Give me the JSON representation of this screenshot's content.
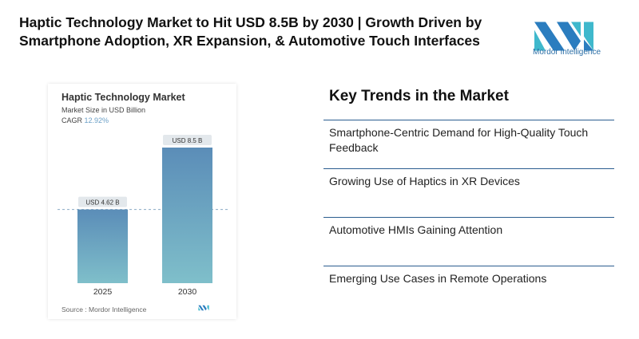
{
  "header": {
    "title": "Haptic Technology Market to Hit USD 8.5B by 2030 | Growth Driven by Smartphone Adoption, XR Expansion, & Automotive Touch Interfaces",
    "logo_text": "Mordor Intelligence"
  },
  "chart_data": {
    "type": "bar",
    "title": "Haptic Technology Market",
    "subtitle": "Market Size in USD Billion",
    "cagr_label": "CAGR",
    "cagr_value": "12.92%",
    "categories": [
      "2025",
      "2030"
    ],
    "values": [
      4.62,
      8.5
    ],
    "data_labels": [
      "USD 4.62 B",
      "USD 8.5 B"
    ],
    "colors": {
      "bar_top": "#5b8db8",
      "bar_bottom": "#7fbfca",
      "dashed_line": "#8aa9c4"
    },
    "ylim": [
      0,
      8.5
    ],
    "grid": false,
    "source": "Source :  Mordor Intelligence"
  },
  "trends": {
    "heading": "Key Trends in the Market",
    "items": [
      "Smartphone-Centric Demand for High-Quality Touch Feedback",
      "Growing Use of Haptics in XR Devices",
      "Automotive HMIs Gaining Attention",
      "Emerging Use Cases in Remote Operations"
    ]
  }
}
